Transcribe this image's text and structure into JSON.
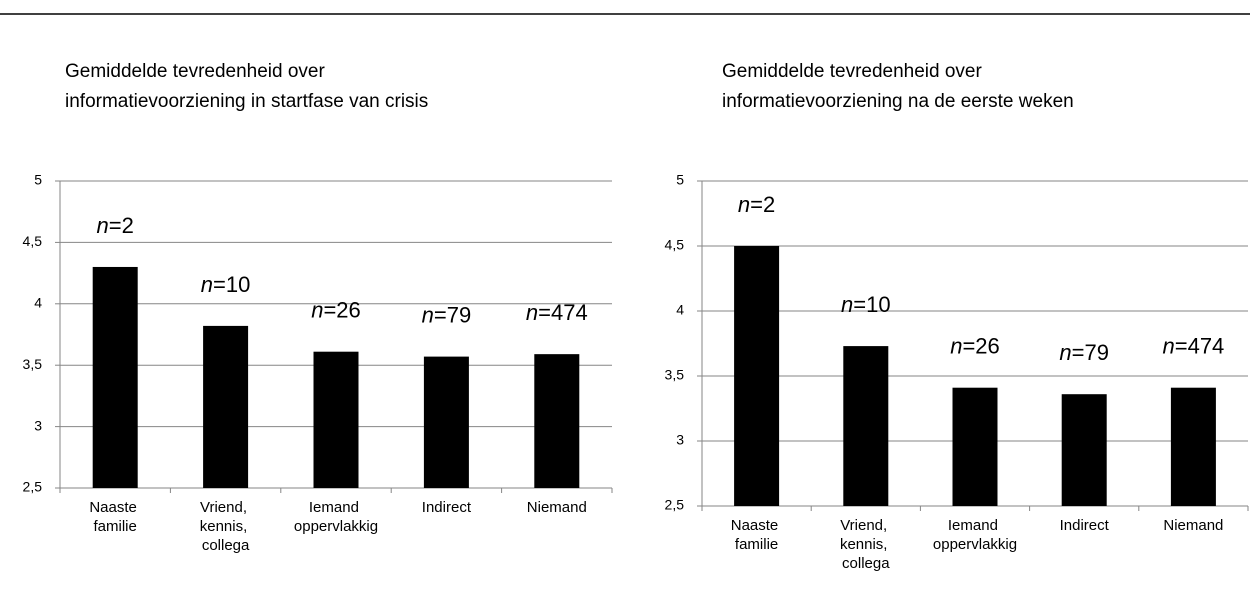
{
  "chart_data": [
    {
      "type": "bar",
      "title": [
        "Gemiddelde tevredenheid over",
        "informatievoorziening in startfase van crisis"
      ],
      "categories": [
        "Naaste familie",
        "Vriend, kennis, collega",
        "Iemand oppervlakkig",
        "Indirect",
        "Niemand"
      ],
      "values": [
        4.3,
        3.82,
        3.61,
        3.57,
        3.59
      ],
      "annotations": [
        "n=2",
        "n=10",
        "n=26",
        "n=79",
        "n=474"
      ],
      "color": "#000000",
      "ylim": [
        2.5,
        5
      ],
      "yticks": [
        {
          "value": 2.5,
          "label": "2,5"
        },
        3,
        {
          "value": 3.5,
          "label": "3,5"
        },
        4,
        {
          "value": 4.5,
          "label": "4,5"
        },
        5
      ],
      "grid": true
    },
    {
      "type": "bar",
      "title": [
        "Gemiddelde tevredenheid over",
        "informatievoorziening na de eerste weken"
      ],
      "categories": [
        "Naaste familie",
        "Vriend, kennis, collega",
        "Iemand oppervlakkig",
        "Indirect",
        "Niemand"
      ],
      "values": [
        4.5,
        3.73,
        3.41,
        3.36,
        3.41
      ],
      "annotations": [
        "n=2",
        "n=10",
        "n=26",
        "n=79",
        "n=474"
      ],
      "color": "#000000",
      "ylim": [
        2.5,
        5
      ],
      "yticks": [
        {
          "value": 2.5,
          "label": "2,5"
        },
        3,
        {
          "value": 3.5,
          "label": "3,5"
        },
        4,
        {
          "value": 4.5,
          "label": "4,5"
        },
        5
      ],
      "grid": true
    }
  ]
}
